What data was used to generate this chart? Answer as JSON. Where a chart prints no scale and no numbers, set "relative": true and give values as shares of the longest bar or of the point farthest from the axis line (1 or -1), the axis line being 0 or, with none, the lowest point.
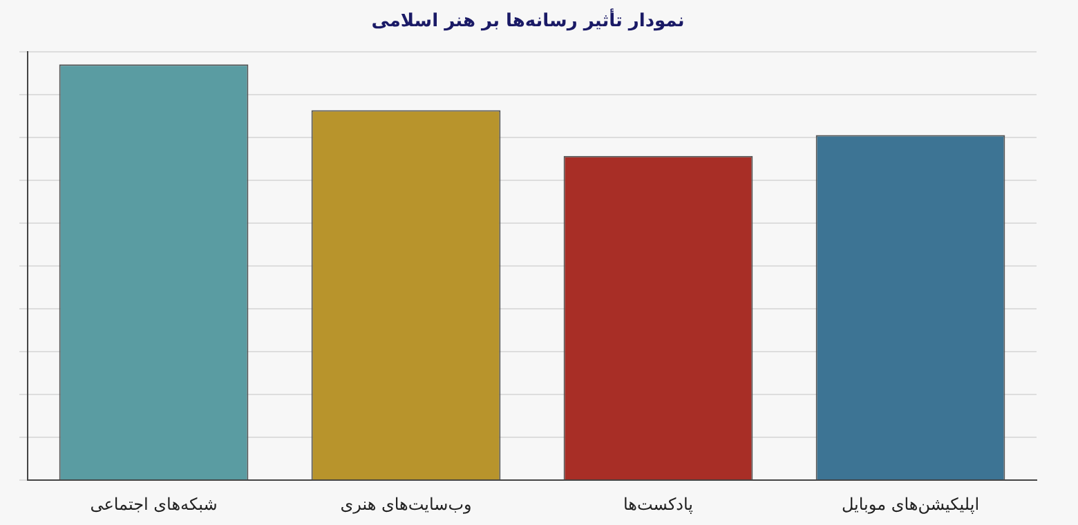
{
  "chart_data": {
    "type": "bar",
    "title": "نمودار تأثیر رسانه‌ها بر هنر اسلامی",
    "categories": [
      "شبکه‌های اجتماعی",
      "وب‌سایت‌های هنری",
      "پادکست‌ها",
      "اپلیکیشن‌های موبایل"
    ],
    "values": [
      1,
      0.89,
      0.78,
      0.83
    ],
    "colors": [
      "#5a9ca2",
      "#b8942c",
      "#a82e26",
      "#3d7494"
    ],
    "relative": true,
    "grid": "y",
    "legend": false
  }
}
